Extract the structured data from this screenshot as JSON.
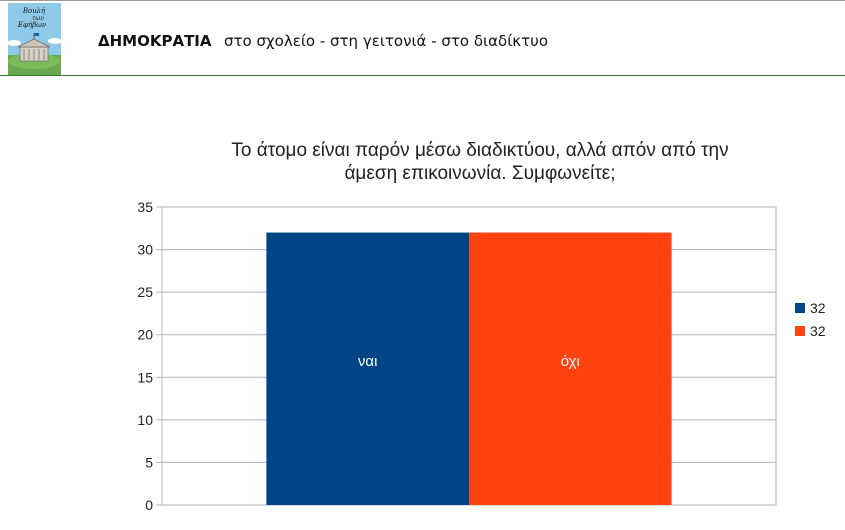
{
  "header": {
    "logo_text": "Βουλή των Εφήβων",
    "brand": "ΔΗΜΟΚΡΑΤΙΑ",
    "tagline": "στο σχολείο - στη γειτονιά - στο διαδίκτυο"
  },
  "chart_data": {
    "type": "bar",
    "title_line1": "Το άτομο είναι παρόν μέσω διαδικτύου, αλλά απόν από την",
    "title_line2": "άμεση επικοινωνία. Συμφωνείτε;",
    "categories": [
      "ναι",
      "όχι"
    ],
    "values": [
      32,
      32
    ],
    "colors": [
      "#004586",
      "#ff420e"
    ],
    "legend": [
      "32",
      "32"
    ],
    "legend_position": "right",
    "ylim": [
      0,
      35
    ],
    "yticks": [
      0,
      5,
      10,
      15,
      20,
      25,
      30,
      35
    ],
    "grid": true
  }
}
